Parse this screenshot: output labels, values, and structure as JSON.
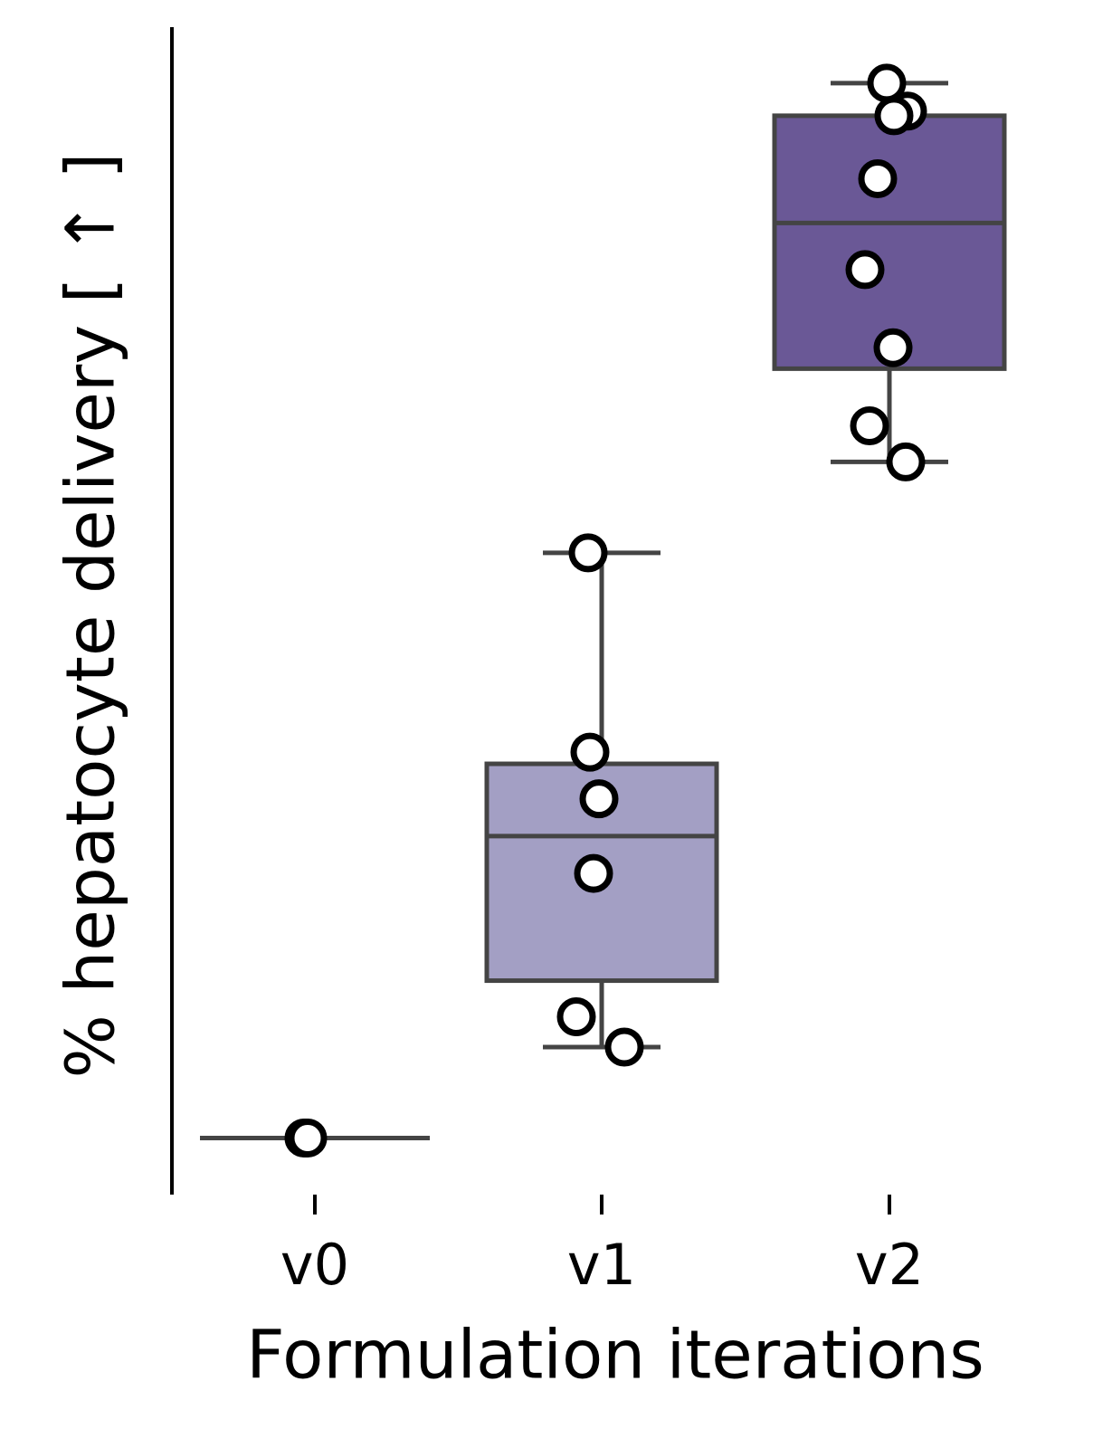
{
  "chart_data": {
    "type": "box",
    "xlabel": "Formulation iterations",
    "ylabel": "% hepatocyte delivery [ ↑ ]",
    "categories": [
      "v0",
      "v1",
      "v2"
    ],
    "colors": [
      "#d9d6ea",
      "#a39fc4",
      "#6a5896"
    ],
    "edge_color": "#444444",
    "ylim": [
      0,
      100
    ],
    "boxes": [
      {
        "whislo": 4.7,
        "q1": 4.7,
        "med": 4.7,
        "q3": 4.7,
        "whishi": 4.7
      },
      {
        "whislo": 12.5,
        "q1": 18.2,
        "med": 30.6,
        "q3": 36.8,
        "whishi": 54.9
      },
      {
        "whislo": 62.7,
        "q1": 70.7,
        "med": 83.2,
        "q3": 92.4,
        "whishi": 95.2
      }
    ],
    "points": [
      [
        4.7,
        4.7,
        4.7
      ],
      [
        54.9,
        37.8,
        33.8,
        27.4,
        15.1,
        12.5
      ],
      [
        95.2,
        92.8,
        92.4,
        87.0,
        79.2,
        72.5,
        65.8,
        62.7
      ]
    ]
  }
}
